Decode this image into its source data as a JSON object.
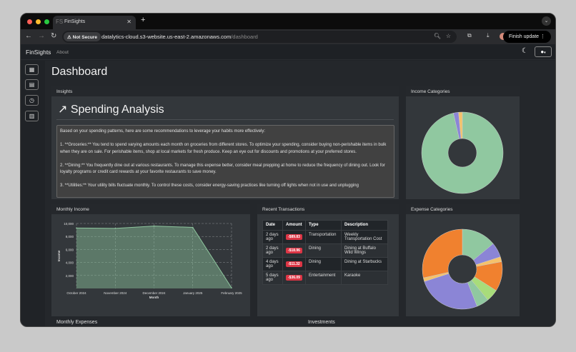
{
  "browser": {
    "tab_title": "FinSights",
    "tab_favicon": "FS",
    "security": "Not Secure",
    "url_host": "datalytics-cloud.s3-website.us-east-2.amazonaws.com",
    "url_path": "/dashboard",
    "finish_update": "Finish update"
  },
  "app": {
    "brand": "FinSights",
    "about": "About",
    "page_title": "Dashboard"
  },
  "sidebar": {
    "items": [
      {
        "icon": "dashboard-icon"
      },
      {
        "icon": "chat-icon"
      },
      {
        "icon": "history-icon"
      },
      {
        "icon": "bar-chart-icon"
      }
    ]
  },
  "insights": {
    "header": "Insights",
    "title": "Spending Analysis",
    "text": "Based on your spending patterns, here are some recommendations to leverage your habits more effectively:\n\n1. **Groceries:** You tend to spend varying amounts each month on groceries from different stores. To optimize your spending, consider buying non-perishable items in bulk when they are on sale. For perishable items, shop at local markets for fresh produce. Keep an eye out for discounts and promotions at your preferred stores.\n\n2. **Dining:** You frequently dine out at various restaurants. To manage this expense better, consider meal prepping at home to reduce the frequency of dining out. Look for loyalty programs or credit card rewards at your favorite restaurants to save money.\n\n3. **Utilities:** Your utility bills fluctuate monthly. To control these costs, consider energy-saving practices like turning off lights when not in use and unplugging"
  },
  "transactions": {
    "header": "Recent Transactions",
    "columns": [
      "Date",
      "Amount",
      "Type",
      "Description"
    ],
    "rows": [
      [
        "2 days ago",
        "-$89.83",
        "Transportation",
        "Weekly Transportation Cost"
      ],
      [
        "2 days ago",
        "-$18.96",
        "Dining",
        "Dining at Buffalo Wild Wings"
      ],
      [
        "4 days ago",
        "-$11.32",
        "Dining",
        "Dining at Starbucks"
      ],
      [
        "5 days ago",
        "-$36.09",
        "Entertainment",
        "Karaoke"
      ]
    ]
  },
  "bottom": {
    "left": "Monthly Expenses",
    "right": "Investments"
  },
  "chart_data": [
    {
      "header": "Monthly Income",
      "type": "area",
      "categories": [
        "October 2024",
        "November 2024",
        "December 2024",
        "January 2025",
        "February 2025"
      ],
      "values": [
        9300,
        9250,
        9600,
        9400,
        100
      ],
      "xlabel": "Month",
      "ylabel": "Income",
      "ylim": [
        0,
        10000
      ],
      "yticks": [
        "2,000",
        "4,000",
        "6,000",
        "8,000",
        "10,000"
      ],
      "grid": true,
      "color": "#8fc79f"
    },
    {
      "header": "Income Categories",
      "type": "pie",
      "donut": true,
      "values": [
        95.5,
        2,
        1.5
      ],
      "colors": [
        "#90c8a0",
        "#8b85d6",
        "#f5c26b"
      ]
    },
    {
      "header": "Expense Categories",
      "type": "pie",
      "donut": true,
      "values": [
        14,
        6,
        2,
        12,
        5,
        5,
        26,
        1.5,
        28.5
      ],
      "colors": [
        "#90c8a0",
        "#8b85d6",
        "#f5c26b",
        "#f0812f",
        "#a8dc7a",
        "#90c8a0",
        "#8b85d6",
        "#f5c26b",
        "#f0812f"
      ]
    }
  ]
}
